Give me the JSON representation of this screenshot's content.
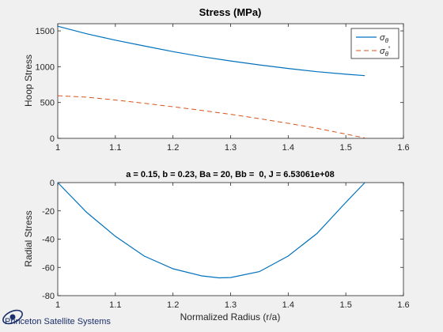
{
  "chart_data": [
    {
      "type": "line",
      "title": "Stress (MPa)",
      "subtitle": "",
      "xlabel": "",
      "ylabel": "Hoop Stress",
      "xlim": [
        1,
        1.6
      ],
      "ylim": [
        0,
        1600
      ],
      "xticks": [
        1,
        1.1,
        1.2,
        1.3,
        1.4,
        1.5,
        1.6
      ],
      "xtick_labels": [
        "1",
        "1.1",
        "1.2",
        "1.3",
        "1.4",
        "1.5",
        "1.6"
      ],
      "yticks": [
        0,
        500,
        1000,
        1500
      ],
      "ytick_labels": [
        "0",
        "500",
        "1000",
        "1500"
      ],
      "grid": false,
      "legend_position": "top-right",
      "series": [
        {
          "name": "σθ",
          "name_base": "σ",
          "name_sub": "θ",
          "name_suffix": "",
          "style": "solid",
          "color": "#0072bd",
          "x": [
            1.0,
            1.05,
            1.1,
            1.15,
            1.2,
            1.25,
            1.3,
            1.35,
            1.4,
            1.45,
            1.5,
            1.533
          ],
          "y": [
            1565,
            1460,
            1370,
            1290,
            1210,
            1140,
            1080,
            1025,
            975,
            930,
            895,
            875
          ]
        },
        {
          "name": "σθ'",
          "name_base": "σ",
          "name_sub": "θ",
          "name_suffix": "'",
          "style": "dashed",
          "color": "#d95319",
          "x": [
            1.0,
            1.05,
            1.1,
            1.15,
            1.2,
            1.25,
            1.3,
            1.35,
            1.4,
            1.45,
            1.5,
            1.533
          ],
          "y": [
            595,
            575,
            535,
            490,
            440,
            390,
            335,
            275,
            210,
            140,
            60,
            5
          ]
        }
      ]
    },
    {
      "type": "line",
      "title": "",
      "subtitle": "a = 0.15, b = 0.23, Ba = 20, Bb =  0, J = 6.53061e+08",
      "xlabel": "Normalized Radius (r/a)",
      "ylabel": "Radial Stress",
      "xlim": [
        1,
        1.6
      ],
      "ylim": [
        -80,
        0
      ],
      "xticks": [
        1,
        1.1,
        1.2,
        1.3,
        1.4,
        1.5,
        1.6
      ],
      "xtick_labels": [
        "1",
        "1.1",
        "1.2",
        "1.3",
        "1.4",
        "1.5",
        "1.6"
      ],
      "yticks": [
        -80,
        -60,
        -40,
        -20,
        0
      ],
      "ytick_labels": [
        "-80",
        "-60",
        "-40",
        "-20",
        "0"
      ],
      "grid": false,
      "legend_position": "none",
      "series": [
        {
          "name": "",
          "style": "solid",
          "color": "#0072bd",
          "x": [
            1.0,
            1.05,
            1.1,
            1.15,
            1.2,
            1.25,
            1.28,
            1.3,
            1.35,
            1.4,
            1.45,
            1.5,
            1.533
          ],
          "y": [
            0,
            -21,
            -38,
            -52,
            -61,
            -66,
            -67.4,
            -67.2,
            -63,
            -52,
            -36,
            -14,
            0
          ]
        }
      ]
    }
  ],
  "logo": {
    "text": "Princeton Satellite Systems"
  }
}
